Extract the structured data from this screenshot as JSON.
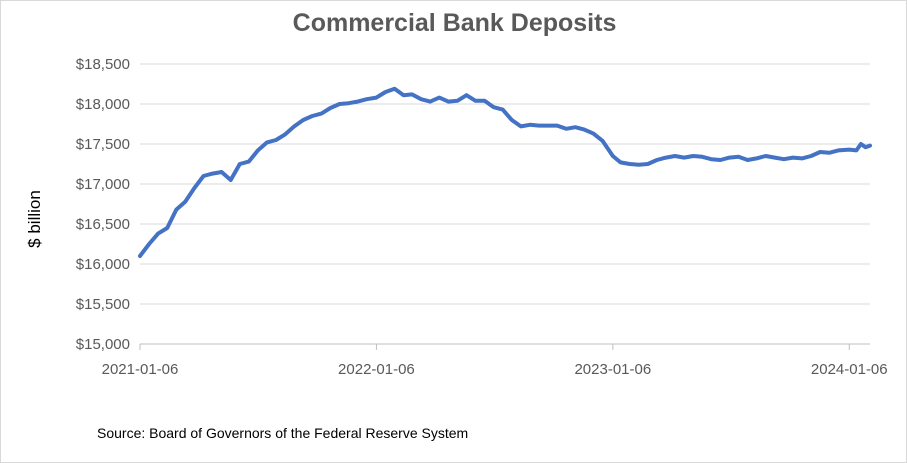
{
  "chart_data": {
    "type": "line",
    "title": "Commercial Bank Deposits",
    "xlabel": "",
    "ylabel": "$ billion",
    "x_tick_labels": [
      "2021-01-06",
      "2022-01-06",
      "2023-01-06",
      "2024-01-06"
    ],
    "y_tick_labels": [
      "$15,000",
      "$15,500",
      "$16,000",
      "$16,500",
      "$17,000",
      "$17,500",
      "$18,000",
      "$18,500"
    ],
    "y_ticks": [
      15000,
      15500,
      16000,
      16500,
      17000,
      17500,
      18000,
      18500
    ],
    "ylim": [
      15000,
      18500
    ],
    "x_tick_dates": [
      "2021-01-06",
      "2022-01-06",
      "2023-01-06",
      "2024-01-06"
    ],
    "xlim": [
      "2021-01-06",
      "2024-02-07"
    ],
    "grid": "horizontal",
    "legend": "none",
    "line_color": "#4472C4",
    "series": [
      {
        "dates": [
          "2021-01-06",
          "2021-01-20",
          "2021-02-03",
          "2021-02-17",
          "2021-03-03",
          "2021-03-17",
          "2021-03-31",
          "2021-04-14",
          "2021-04-28",
          "2021-05-12",
          "2021-05-26",
          "2021-06-09",
          "2021-06-23",
          "2021-07-07",
          "2021-07-21",
          "2021-08-04",
          "2021-08-18",
          "2021-09-01",
          "2021-09-15",
          "2021-09-29",
          "2021-10-13",
          "2021-10-27",
          "2021-11-10",
          "2021-11-24",
          "2021-12-08",
          "2021-12-22",
          "2022-01-06",
          "2022-01-20",
          "2022-02-03",
          "2022-02-17",
          "2022-03-02",
          "2022-03-16",
          "2022-03-30",
          "2022-04-13",
          "2022-04-27",
          "2022-05-11",
          "2022-05-25",
          "2022-06-08",
          "2022-06-22",
          "2022-07-06",
          "2022-07-20",
          "2022-08-03",
          "2022-08-17",
          "2022-08-31",
          "2022-09-14",
          "2022-09-28",
          "2022-10-12",
          "2022-10-26",
          "2022-11-09",
          "2022-11-23",
          "2022-12-07",
          "2022-12-21",
          "2023-01-06",
          "2023-01-18",
          "2023-02-01",
          "2023-02-15",
          "2023-03-01",
          "2023-03-15",
          "2023-03-29",
          "2023-04-12",
          "2023-04-26",
          "2023-05-10",
          "2023-05-24",
          "2023-06-07",
          "2023-06-21",
          "2023-07-05",
          "2023-07-19",
          "2023-08-02",
          "2023-08-16",
          "2023-08-30",
          "2023-09-13",
          "2023-09-27",
          "2023-10-11",
          "2023-10-25",
          "2023-11-08",
          "2023-11-22",
          "2023-12-06",
          "2023-12-20",
          "2024-01-06",
          "2024-01-17",
          "2024-01-24",
          "2024-01-31",
          "2024-02-07"
        ],
        "values": [
          16100,
          16250,
          16380,
          16450,
          16680,
          16780,
          16950,
          17100,
          17130,
          17150,
          17050,
          17250,
          17280,
          17420,
          17520,
          17550,
          17620,
          17720,
          17800,
          17850,
          17880,
          17950,
          18000,
          18010,
          18030,
          18060,
          18080,
          18150,
          18190,
          18110,
          18120,
          18060,
          18030,
          18080,
          18030,
          18040,
          18110,
          18040,
          18040,
          17960,
          17930,
          17800,
          17720,
          17740,
          17730,
          17730,
          17730,
          17690,
          17710,
          17680,
          17630,
          17540,
          17350,
          17270,
          17250,
          17240,
          17250,
          17300,
          17330,
          17350,
          17330,
          17350,
          17340,
          17310,
          17300,
          17330,
          17340,
          17300,
          17320,
          17350,
          17330,
          17310,
          17330,
          17320,
          17350,
          17400,
          17390,
          17420,
          17430,
          17420,
          17500,
          17460,
          17480
        ]
      }
    ],
    "source": "Source: Board of Governors of the Federal Reserve System"
  }
}
